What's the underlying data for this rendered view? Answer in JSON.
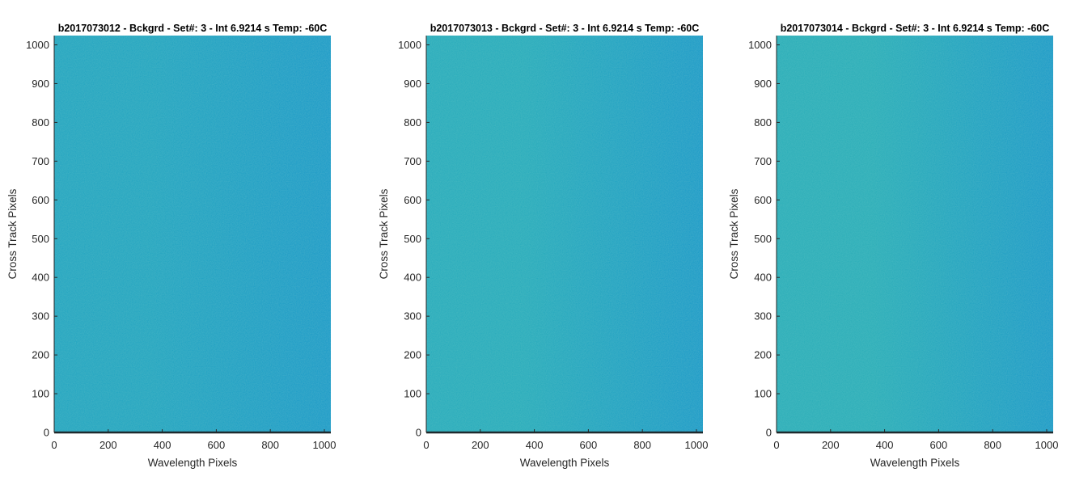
{
  "chart_data": [
    {
      "type": "heatmap",
      "title": "b2017073012 - Bckgrd - Set#: 3 - Int 6.9214 s Temp: -60C",
      "xlabel": "Wavelength Pixels",
      "ylabel": "Cross Track Pixels",
      "xlim": [
        0,
        1024
      ],
      "ylim": [
        0,
        1024
      ],
      "xticks": [
        0,
        200,
        400,
        600,
        800,
        1000
      ],
      "yticks": [
        0,
        100,
        200,
        300,
        400,
        500,
        600,
        700,
        800,
        900,
        1000
      ],
      "colors": {
        "left": "#1ba3c0",
        "right": "#0f98c8"
      }
    },
    {
      "type": "heatmap",
      "title": "b2017073013 - Bckgrd - Set#: 3 - Int 6.9214 s Temp: -60C",
      "xlabel": "Wavelength Pixels",
      "ylabel": "Cross Track Pixels",
      "xlim": [
        0,
        1024
      ],
      "ylim": [
        0,
        1024
      ],
      "xticks": [
        0,
        200,
        400,
        600,
        800,
        1000
      ],
      "yticks": [
        0,
        100,
        200,
        300,
        400,
        500,
        600,
        700,
        800,
        900,
        1000
      ],
      "colors": {
        "left": "#22aabb",
        "right": "#0f98c8"
      }
    },
    {
      "type": "heatmap",
      "title": "b2017073014 - Bckgrd - Set#: 3 - Int 6.9214 s Temp: -60C",
      "xlabel": "Wavelength Pixels",
      "ylabel": "Cross Track Pixels",
      "xlim": [
        0,
        1024
      ],
      "ylim": [
        0,
        1024
      ],
      "xticks": [
        0,
        200,
        400,
        600,
        800,
        1000
      ],
      "yticks": [
        0,
        100,
        200,
        300,
        400,
        500,
        600,
        700,
        800,
        900,
        1000
      ],
      "colors": {
        "left": "#25acb8",
        "right": "#0f98c8"
      }
    }
  ]
}
